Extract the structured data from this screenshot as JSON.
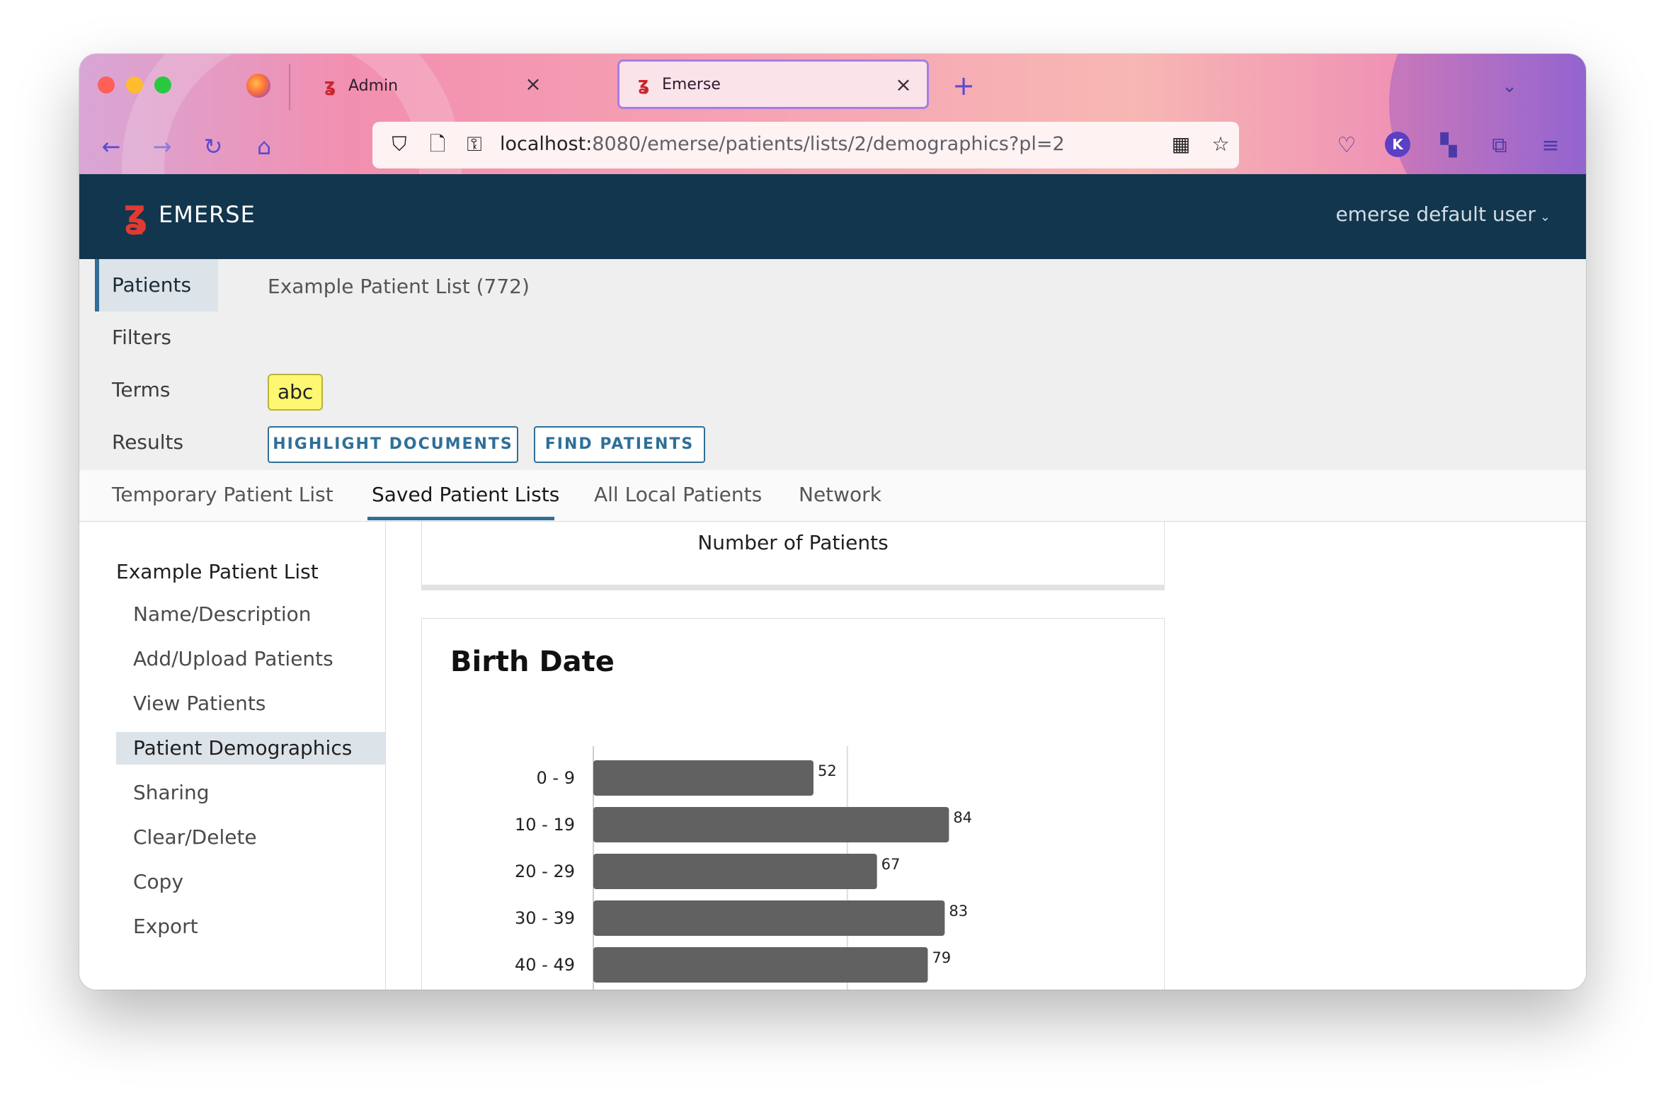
{
  "browser": {
    "tabs": [
      {
        "label": "Admin",
        "active": false
      },
      {
        "label": "Emerse",
        "active": true
      }
    ],
    "url_host": "localhost:",
    "url_path": "8080/emerse/patients/lists/2/demographics?pl=2",
    "avatar_letter": "K",
    "accent": "#5b4ad4"
  },
  "app": {
    "brand": "EMERSE",
    "user": "emerse default user",
    "header_color": "#12364d"
  },
  "search": {
    "labels": {
      "patients": "Patients",
      "filters": "Filters",
      "terms": "Terms",
      "results": "Results"
    },
    "patient_list": "Example Patient List (772)",
    "term_chip": "abc",
    "highlight_button": "HIGHLIGHT DOCUMENTS",
    "find_button": "FIND PATIENTS"
  },
  "tabs": {
    "temporary": "Temporary Patient List",
    "saved": "Saved Patient Lists",
    "all_local": "All Local Patients",
    "network": "Network"
  },
  "leftnav": {
    "title": "Example Patient List",
    "items": [
      "Name/Description",
      "Add/Upload Patients",
      "View Patients",
      "Patient Demographics",
      "Sharing",
      "Clear/Delete",
      "Copy",
      "Export"
    ],
    "active_index": 3
  },
  "main": {
    "top_card_label": "Number of Patients",
    "birth_card_title": "Birth Date"
  },
  "chart_data": {
    "type": "bar",
    "orientation": "horizontal",
    "title": "Birth Date",
    "categories": [
      "0 - 9",
      "10 - 19",
      "20 - 29",
      "30 - 39",
      "40 - 49"
    ],
    "values": [
      52,
      84,
      67,
      83,
      79
    ],
    "xlim": [
      0,
      100
    ],
    "bar_color": "#616161",
    "grid": true
  }
}
